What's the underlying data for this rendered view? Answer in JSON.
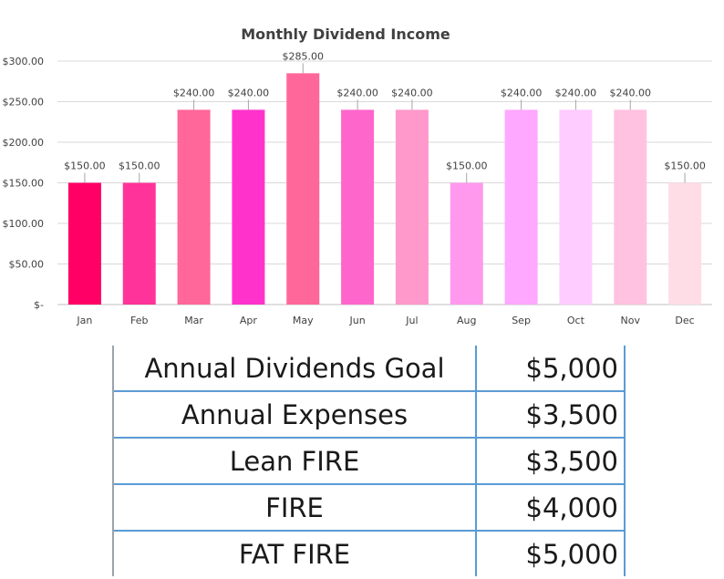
{
  "chart_data": {
    "type": "bar",
    "title": "Monthly Dividend Income",
    "xlabel": "",
    "ylabel": "",
    "categories": [
      "Jan",
      "Feb",
      "Mar",
      "Apr",
      "May",
      "Jun",
      "Jul",
      "Aug",
      "Sep",
      "Oct",
      "Nov",
      "Dec"
    ],
    "values": [
      150,
      150,
      240,
      240,
      285,
      240,
      240,
      150,
      240,
      240,
      240,
      150
    ],
    "data_labels": [
      "$150.00",
      "$150.00",
      "$240.00",
      "$240.00",
      "$285.00",
      "$240.00",
      "$240.00",
      "$150.00",
      "$240.00",
      "$240.00",
      "$240.00",
      "$150.00"
    ],
    "yticks": [
      0,
      50,
      100,
      150,
      200,
      250,
      300
    ],
    "ytick_labels": [
      "$-",
      "$50.00",
      "$100.00",
      "$150.00",
      "$200.00",
      "$250.00",
      "$300.00"
    ],
    "ylim": [
      0,
      300
    ],
    "grid": true,
    "legend": "none",
    "bar_colors": [
      "#ff0066",
      "#ff3399",
      "#ff6699",
      "#ff33cc",
      "#ff6699",
      "#ff66cc",
      "#ff99cc",
      "#ff99ee",
      "#ffa8ff",
      "#ffccff",
      "#ffc2e0",
      "#ffdde6"
    ]
  },
  "summary_table": {
    "rows": [
      {
        "label": "Annual Dividends Goal",
        "value": "$5,000"
      },
      {
        "label": "Annual Expenses",
        "value": "$3,500"
      },
      {
        "label": "Lean FIRE",
        "value": "$3,500"
      },
      {
        "label": "FIRE",
        "value": "$4,000"
      },
      {
        "label": "FAT FIRE",
        "value": "$5,000"
      }
    ]
  }
}
